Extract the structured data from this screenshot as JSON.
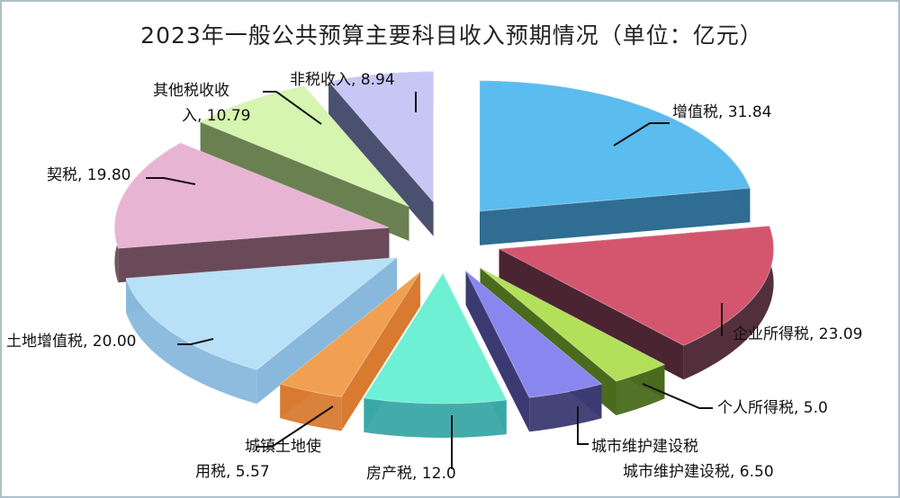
{
  "chart_data": {
    "type": "pie",
    "style": "3d-exploded",
    "title": "2023年一般公共预算主要科目收入预期情况（单位：亿元）",
    "slices": [
      {
        "label": "增值税",
        "value_text": "31.84",
        "value": 31.84,
        "color": "#5bbcef",
        "side": "#2f6d93"
      },
      {
        "label": "企业所得税",
        "value_text": "23.09",
        "value": 23.09,
        "color": "#d4566e",
        "side": "#4a2430"
      },
      {
        "label": "个人所得税",
        "value_text": "5.0",
        "value": 5.0,
        "color": "#b3e05a",
        "side": "#4a6a1e"
      },
      {
        "label": "城市维护建设税",
        "value_text": "6.50",
        "value": 6.5,
        "color": "#8a86f0",
        "side": "#3b3a72"
      },
      {
        "label": "房产税",
        "value_text": "12.0",
        "value": 12.0,
        "color": "#6ef0d4",
        "side": "#3aa6a6"
      },
      {
        "label": "城镇土地使用税",
        "value_text": "5.57",
        "value": 5.57,
        "color": "#f0a050",
        "side": "#d87a30"
      },
      {
        "label": "土地增值税",
        "value_text": "20.00",
        "value": 20.0,
        "color": "#b8e0f6",
        "side": "#88b8dc"
      },
      {
        "label": "契税",
        "value_text": "19.80",
        "value": 19.8,
        "color": "#e8b4d4",
        "side": "#6a4a58"
      },
      {
        "label": "其他税收收入",
        "value_text": "10.79",
        "value": 10.79,
        "color": "#d6f5b0",
        "side": "#6a8050"
      },
      {
        "label": "非税收入",
        "value_text": "8.94",
        "value": 8.94,
        "color": "#c8c6f4",
        "side": "#4a5070"
      }
    ]
  }
}
